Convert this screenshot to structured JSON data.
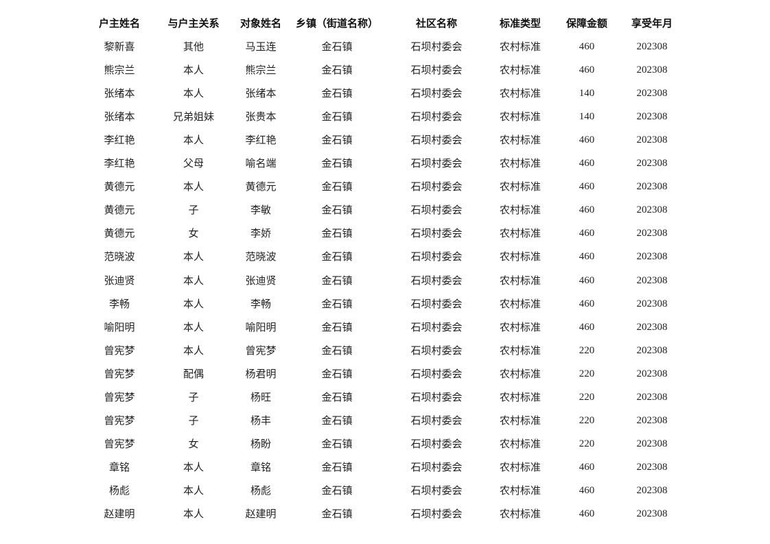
{
  "table": {
    "headers": [
      "户主姓名",
      "与户主关系",
      "对象姓名",
      "乡镇（街道名称）",
      "社区名称",
      "标准类型",
      "保障金额",
      "享受年月"
    ],
    "rows": [
      [
        "黎新喜",
        "其他",
        "马玉连",
        "金石镇",
        "石坝村委会",
        "农村标准",
        "460",
        "202308"
      ],
      [
        "熊宗兰",
        "本人",
        "熊宗兰",
        "金石镇",
        "石坝村委会",
        "农村标准",
        "460",
        "202308"
      ],
      [
        "张绪本",
        "本人",
        "张绪本",
        "金石镇",
        "石坝村委会",
        "农村标准",
        "140",
        "202308"
      ],
      [
        "张绪本",
        "兄弟姐妹",
        "张贵本",
        "金石镇",
        "石坝村委会",
        "农村标准",
        "140",
        "202308"
      ],
      [
        "李红艳",
        "本人",
        "李红艳",
        "金石镇",
        "石坝村委会",
        "农村标准",
        "460",
        "202308"
      ],
      [
        "李红艳",
        "父母",
        "喻名端",
        "金石镇",
        "石坝村委会",
        "农村标准",
        "460",
        "202308"
      ],
      [
        "黄德元",
        "本人",
        "黄德元",
        "金石镇",
        "石坝村委会",
        "农村标准",
        "460",
        "202308"
      ],
      [
        "黄德元",
        "子",
        "李敏",
        "金石镇",
        "石坝村委会",
        "农村标准",
        "460",
        "202308"
      ],
      [
        "黄德元",
        "女",
        "李娇",
        "金石镇",
        "石坝村委会",
        "农村标准",
        "460",
        "202308"
      ],
      [
        "范晓波",
        "本人",
        "范晓波",
        "金石镇",
        "石坝村委会",
        "农村标准",
        "460",
        "202308"
      ],
      [
        "张迪贤",
        "本人",
        "张迪贤",
        "金石镇",
        "石坝村委会",
        "农村标准",
        "460",
        "202308"
      ],
      [
        "李畅",
        "本人",
        "李畅",
        "金石镇",
        "石坝村委会",
        "农村标准",
        "460",
        "202308"
      ],
      [
        "喻阳明",
        "本人",
        "喻阳明",
        "金石镇",
        "石坝村委会",
        "农村标准",
        "460",
        "202308"
      ],
      [
        "曾宪梦",
        "本人",
        "曾宪梦",
        "金石镇",
        "石坝村委会",
        "农村标准",
        "220",
        "202308"
      ],
      [
        "曾宪梦",
        "配偶",
        "杨君明",
        "金石镇",
        "石坝村委会",
        "农村标准",
        "220",
        "202308"
      ],
      [
        "曾宪梦",
        "子",
        "杨旺",
        "金石镇",
        "石坝村委会",
        "农村标准",
        "220",
        "202308"
      ],
      [
        "曾宪梦",
        "子",
        "杨丰",
        "金石镇",
        "石坝村委会",
        "农村标准",
        "220",
        "202308"
      ],
      [
        "曾宪梦",
        "女",
        "杨盼",
        "金石镇",
        "石坝村委会",
        "农村标准",
        "220",
        "202308"
      ],
      [
        "章铭",
        "本人",
        "章铭",
        "金石镇",
        "石坝村委会",
        "农村标准",
        "460",
        "202308"
      ],
      [
        "杨彪",
        "本人",
        "杨彪",
        "金石镇",
        "石坝村委会",
        "农村标准",
        "460",
        "202308"
      ],
      [
        "赵建明",
        "本人",
        "赵建明",
        "金石镇",
        "石坝村委会",
        "农村标准",
        "460",
        "202308"
      ]
    ]
  }
}
